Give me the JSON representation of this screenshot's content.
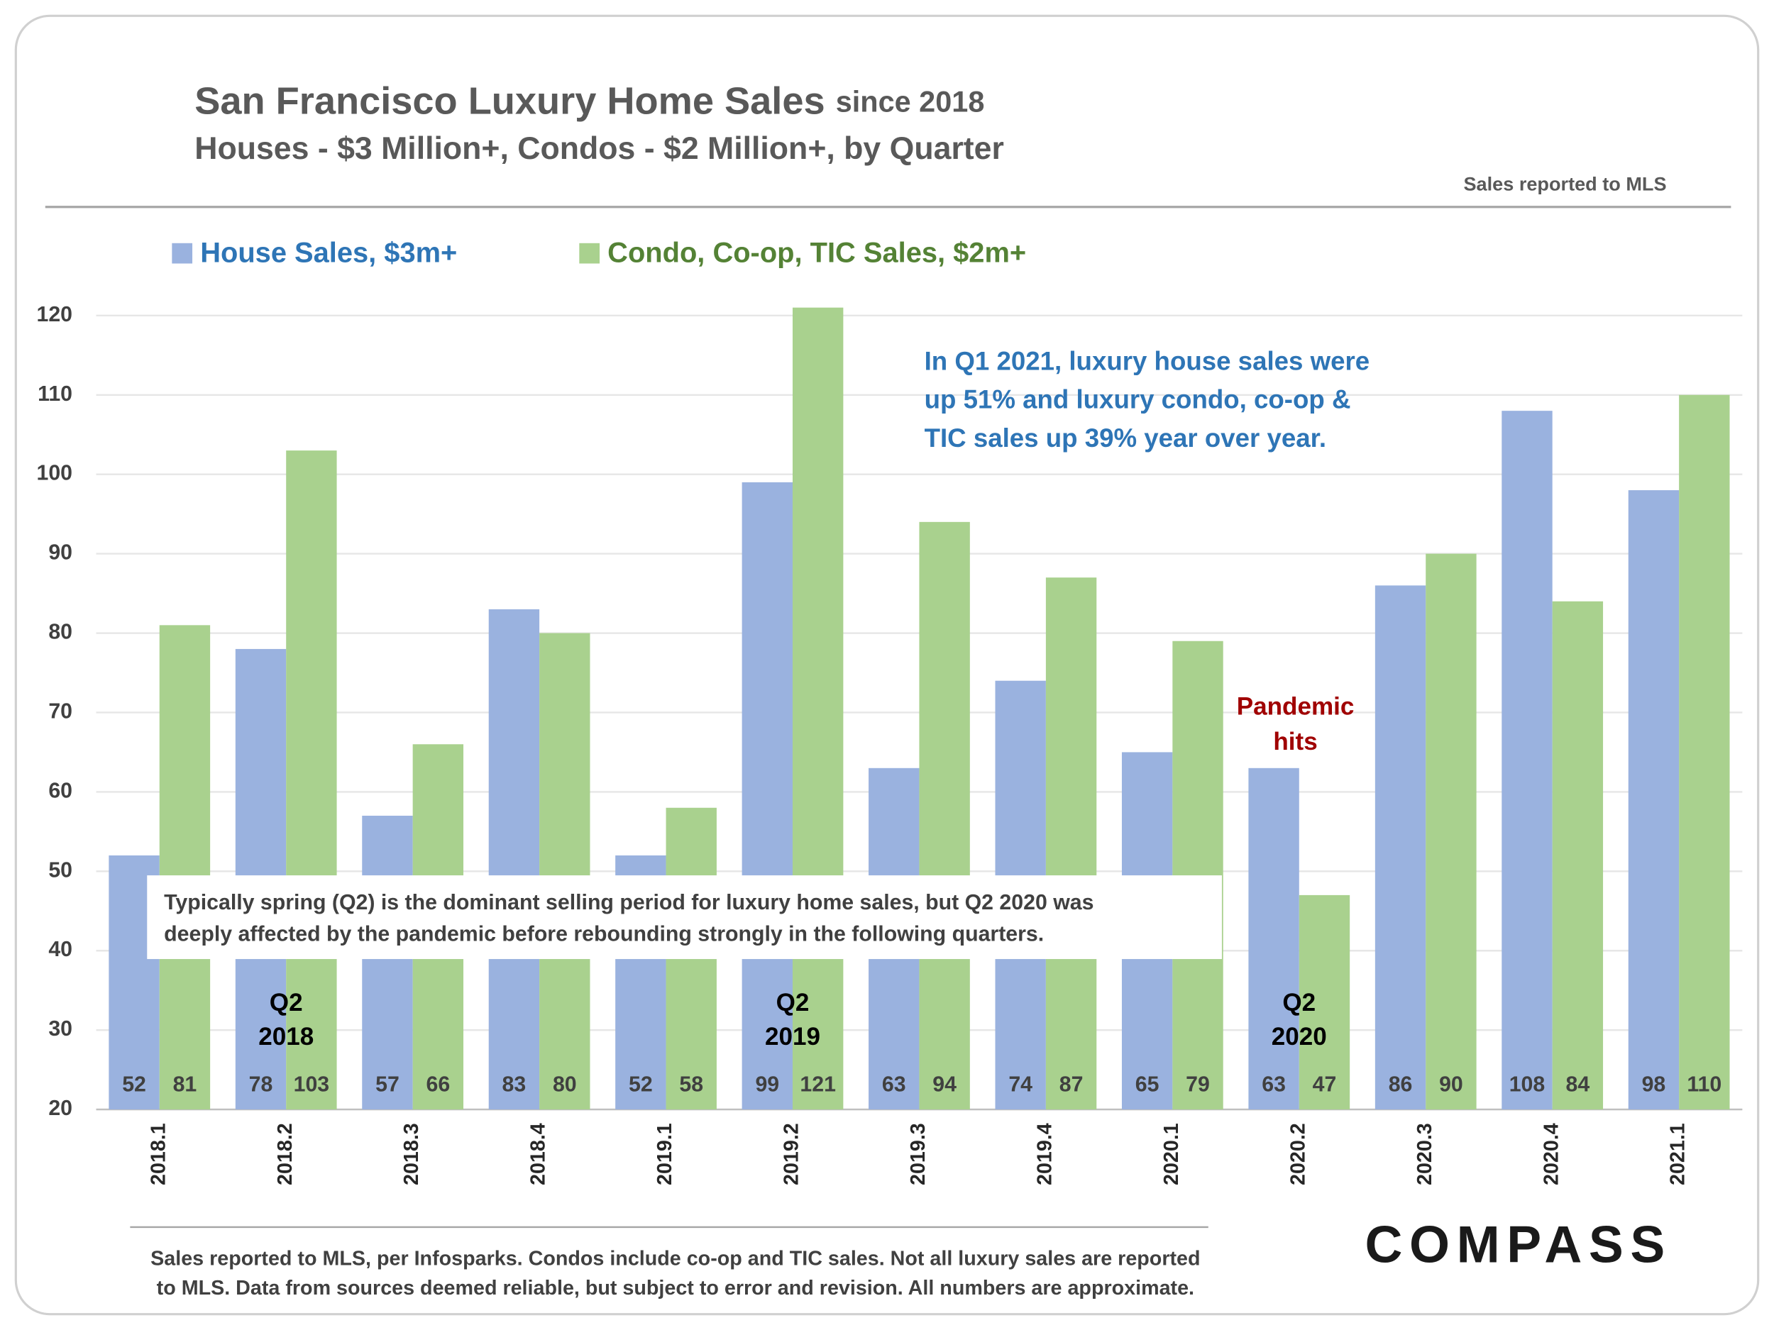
{
  "chart_data": {
    "type": "bar",
    "title": "San Francisco Luxury Home Sales",
    "title_suffix": "since 2018",
    "subtitle": "Houses - $3 Million+, Condos - $2 Million+, by Quarter",
    "source_note": "Sales reported to MLS",
    "categories": [
      "2018.1",
      "2018.2",
      "2018.3",
      "2018.4",
      "2019.1",
      "2019.2",
      "2019.3",
      "2019.4",
      "2020.1",
      "2020.2",
      "2020.3",
      "2020.4",
      "2021.1"
    ],
    "series": [
      {
        "name": "House Sales, $3m+",
        "color": "#9ab2df",
        "values": [
          52,
          78,
          57,
          83,
          52,
          99,
          63,
          74,
          65,
          63,
          86,
          108,
          98
        ]
      },
      {
        "name": "Condo, Co-op, TIC Sales, $2m+",
        "color": "#a9d18e",
        "values": [
          81,
          103,
          66,
          80,
          58,
          121,
          94,
          87,
          79,
          47,
          90,
          84,
          110
        ]
      }
    ],
    "ylim": [
      20,
      122
    ],
    "yticks": [
      20,
      30,
      40,
      50,
      60,
      70,
      80,
      90,
      100,
      110,
      120
    ],
    "grid": true,
    "annotations": {
      "note": [
        "In Q1 2021, luxury house sales were",
        "up 51% and luxury condo, co-op &",
        "TIC sales up 39% year over year."
      ],
      "pandemic": [
        "Pandemic",
        "hits"
      ],
      "box": [
        "Typically spring (Q2) is the dominant selling period for luxury home sales, but Q2 2020 was",
        "deeply affected by the pandemic before rebounding strongly in the following quarters."
      ],
      "q2_2018": [
        "Q2",
        "2018"
      ],
      "q2_2019": [
        "Q2",
        "2019"
      ],
      "q2_2020": [
        "Q2",
        "2020"
      ]
    },
    "footnote": [
      "Sales reported to MLS, per Infosparks. Condos include co-op and TIC sales. Not all luxury sales are reported",
      "to MLS. Data from sources deemed reliable, but subject to error and revision. All numbers are approximate."
    ],
    "logo": "COMPASS"
  }
}
